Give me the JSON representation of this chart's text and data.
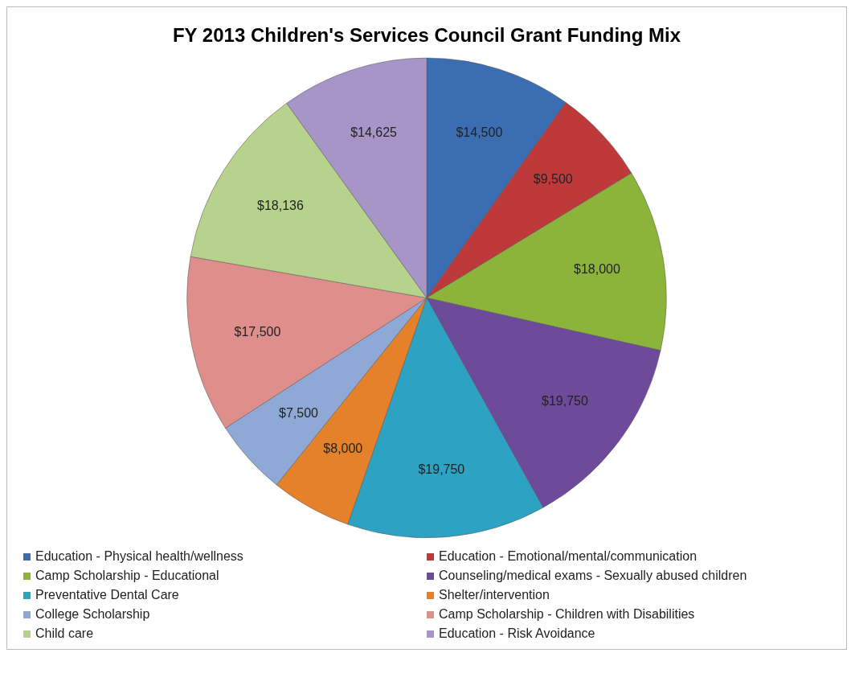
{
  "chart_data": {
    "type": "pie",
    "title": "FY 2013 Children's Services Council Grant Funding Mix",
    "categories": [
      "Education - Physical health/wellness",
      "Education - Emotional/mental/communication",
      "Camp Scholarship - Educational",
      "Counseling/medical exams - Sexually abused children",
      "Preventative Dental Care",
      "Shelter/intervention",
      "College Scholarship",
      "Camp Scholarship - Children with Disabilities",
      "Child care",
      "Education - Risk Avoidance"
    ],
    "values": [
      14500,
      9500,
      18000,
      19750,
      19750,
      8000,
      7500,
      17500,
      18136,
      14625
    ],
    "value_labels": [
      "$14,500",
      "$9,500",
      "$18,000",
      "$19,750",
      "$19,750",
      "$8,000",
      "$7,500",
      "$17,500",
      "$18,136",
      "$14,625"
    ],
    "colors": [
      "#3b6db3",
      "#be3a3a",
      "#8cb43b",
      "#6e4a9b",
      "#2ea2c3",
      "#e5812b",
      "#8ea9d6",
      "#de8f8c",
      "#b6d28c",
      "#a795c7"
    ],
    "legend": "bottom"
  }
}
